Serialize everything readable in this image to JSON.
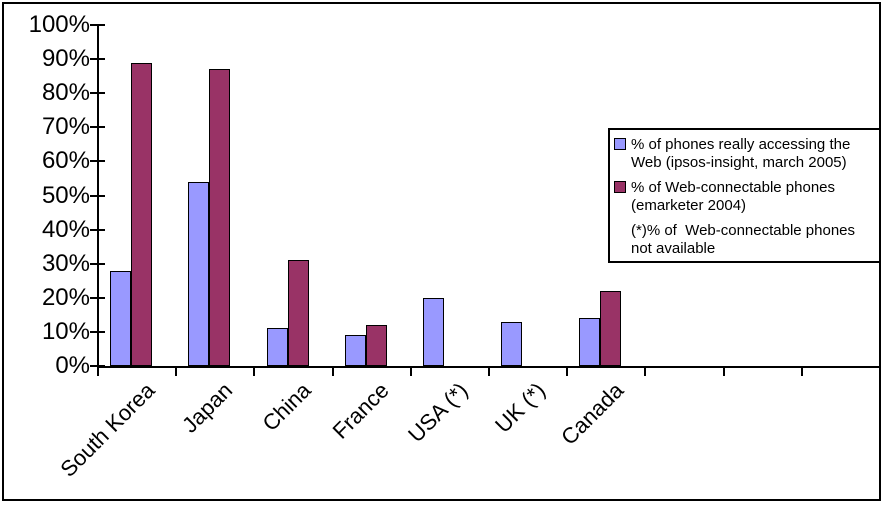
{
  "chart_data": {
    "type": "bar",
    "title": "",
    "xlabel": "",
    "ylabel": "",
    "categories": [
      "South Korea",
      "Japan",
      "China",
      "France",
      "USA (*)",
      "UK (*)",
      "Canada"
    ],
    "series": [
      {
        "name": "% of phones really accessing the Web (ipsos-insight, march 2005)",
        "color": "#9999FF",
        "values": [
          28,
          54,
          11,
          9,
          20,
          13,
          14
        ]
      },
      {
        "name": "% of Web-connectable phones (emarketer 2004)",
        "color": "#993366",
        "values": [
          89,
          87,
          31,
          12,
          null,
          null,
          22
        ]
      }
    ],
    "footnote": "(*)% of  Web-connectable phones not available",
    "ylim": [
      0,
      100
    ],
    "y_tick_step": 10,
    "y_tick_labels": [
      "0%",
      "10%",
      "20%",
      "30%",
      "40%",
      "50%",
      "60%",
      "70%",
      "80%",
      "90%",
      "100%"
    ],
    "total_category_slots": 10,
    "grid": false,
    "legend_position": "right",
    "legend_items": [
      {
        "label": "% of phones really accessing the Web (ipsos-insight, march 2005)",
        "swatch": "#9999FF"
      },
      {
        "label": "% of Web-connectable phones (emarketer 2004)",
        "swatch": "#993366"
      },
      {
        "label": "(*)% of  Web-connectable phones not available",
        "swatch": null
      }
    ]
  },
  "colors": {
    "series1": "#9999FF",
    "series2": "#993366",
    "axis": "#000000",
    "bar_border": "#000000",
    "background": "#FFFFFF"
  }
}
